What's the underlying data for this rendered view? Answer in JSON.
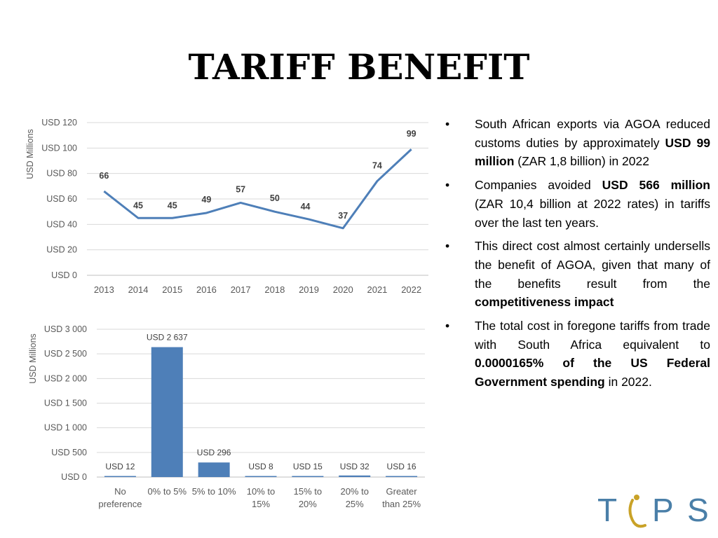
{
  "slide": {
    "title": "TARIFF BENEFIT",
    "bullets": [
      {
        "parts": [
          {
            "text": "South African exports via AGOA reduced customs duties by approximately ",
            "bold": false
          },
          {
            "text": "USD 99 million",
            "bold": true
          },
          {
            "text": " (ZAR 1,8 billion) in 2022",
            "bold": false
          }
        ]
      },
      {
        "parts": [
          {
            "text": "Companies avoided ",
            "bold": false
          },
          {
            "text": "USD 566 million",
            "bold": true
          },
          {
            "text": " (ZAR 10,4 billion at 2022 rates) in tariffs over the last ten years.",
            "bold": false
          }
        ]
      },
      {
        "parts": [
          {
            "text": "This direct cost almost certainly undersells the benefit of AGOA, given that many of the benefits result from the ",
            "bold": false
          },
          {
            "text": "competitiveness impact",
            "bold": true
          }
        ]
      },
      {
        "parts": [
          {
            "text": "The total cost in foregone tariffs from trade with South Africa equivalent to ",
            "bold": false
          },
          {
            "text": "0.0000165% of the US Federal Government spending",
            "bold": true
          },
          {
            "text": " in 2022.",
            "bold": false
          }
        ]
      }
    ],
    "bullet_symbol": "•",
    "logo": {
      "letters": [
        "T",
        "P",
        "S"
      ],
      "colors": {
        "primary": "#4a7fa8",
        "accent": "#c9a227"
      }
    }
  },
  "chart_data": [
    {
      "type": "line",
      "ylabel": "USD Millions",
      "ylim": [
        0,
        120
      ],
      "yticks": [
        "USD 0",
        "USD 20",
        "USD 40",
        "USD 60",
        "USD 80",
        "USD 100",
        "USD 120"
      ],
      "ytick_values": [
        0,
        20,
        40,
        60,
        80,
        100,
        120
      ],
      "categories": [
        "2013",
        "2014",
        "2015",
        "2016",
        "2017",
        "2018",
        "2019",
        "2020",
        "2021",
        "2022"
      ],
      "values": [
        66,
        45,
        45,
        49,
        57,
        50,
        44,
        37,
        74,
        99
      ],
      "data_labels": [
        "66",
        "45",
        "45",
        "49",
        "57",
        "50",
        "44",
        "37",
        "74",
        "99"
      ],
      "grid": true,
      "color": "#4e7fb8"
    },
    {
      "type": "bar",
      "ylabel": "USD Millions",
      "ylim": [
        0,
        3000
      ],
      "yticks": [
        "USD  0",
        "USD  500",
        "USD 1 000",
        "USD 1 500",
        "USD 2 000",
        "USD 2 500",
        "USD 3 000"
      ],
      "ytick_values": [
        0,
        500,
        1000,
        1500,
        2000,
        2500,
        3000
      ],
      "categories": [
        [
          "No",
          "preference"
        ],
        [
          "0% to 5%"
        ],
        [
          "5% to 10%"
        ],
        [
          "10% to",
          "15%"
        ],
        [
          "15% to",
          "20%"
        ],
        [
          "20% to",
          "25%"
        ],
        [
          "Greater",
          "than 25%"
        ]
      ],
      "values": [
        12,
        2637,
        296,
        8,
        15,
        32,
        16
      ],
      "data_labels": [
        "USD  12",
        "USD 2 637",
        "USD  296",
        "USD  8",
        "USD  15",
        "USD  32",
        "USD  16"
      ],
      "grid": true,
      "color": "#4e7fb8"
    }
  ]
}
